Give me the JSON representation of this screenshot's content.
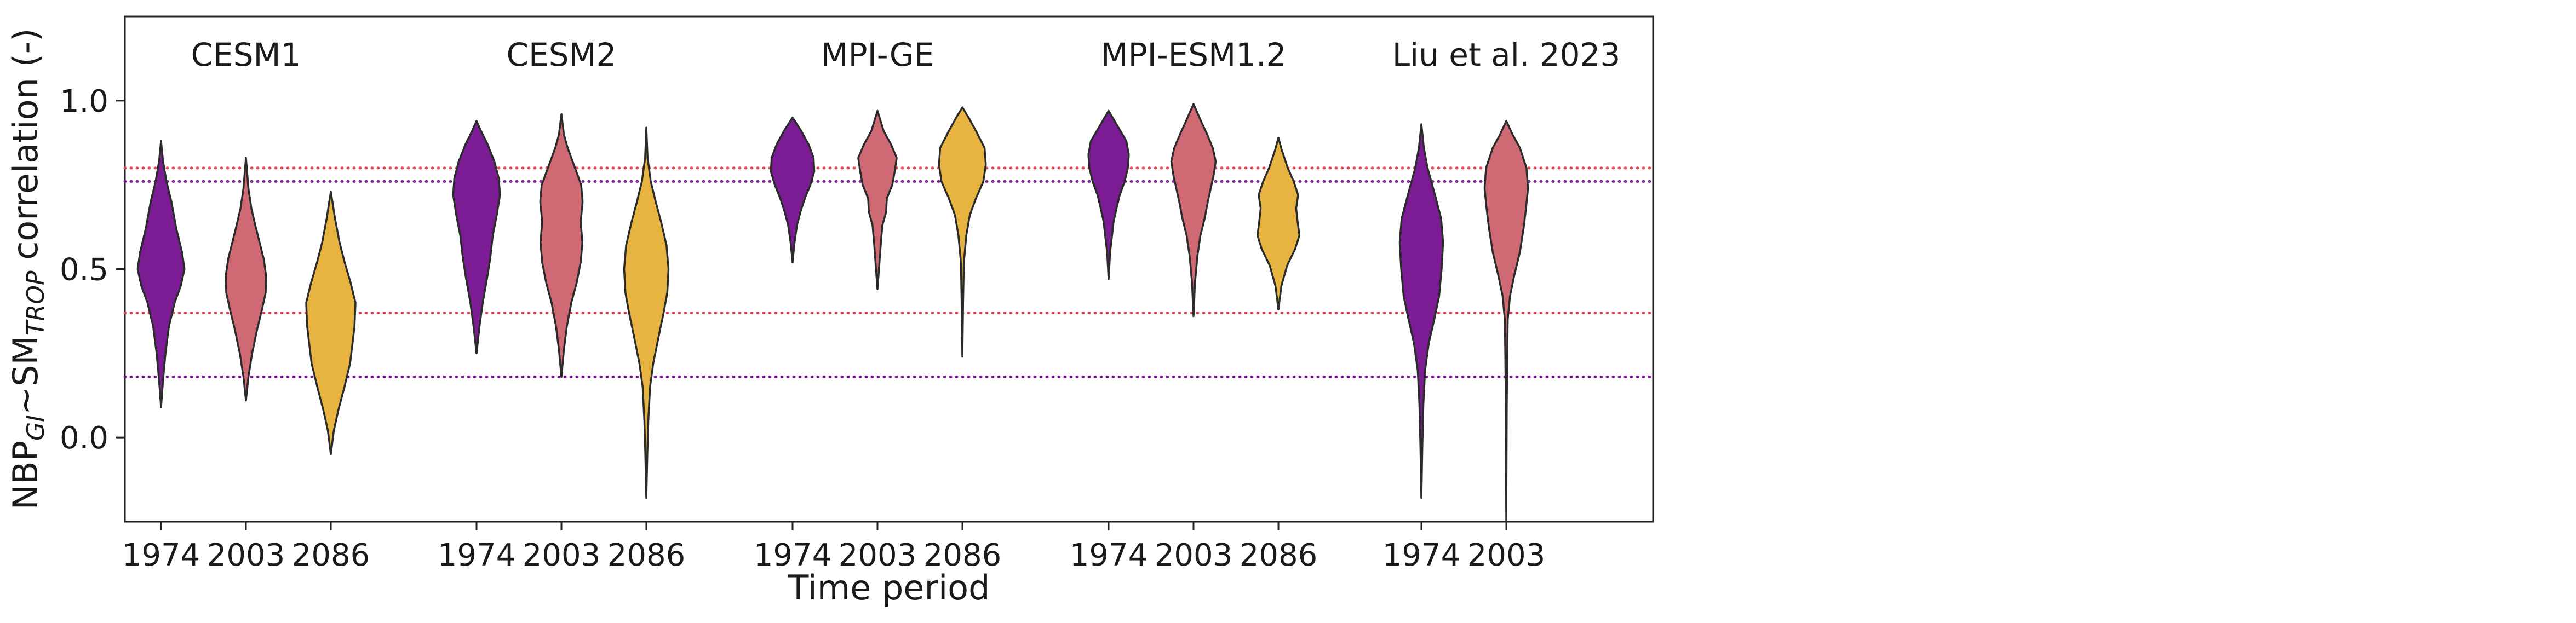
{
  "chart_data": {
    "type": "violin",
    "ylabel": {
      "base": "NBP",
      "sub1": "GI",
      "mid": "~SM",
      "sub2": "TROP",
      "rest": " correlation (-)"
    },
    "xlabel": "Time period",
    "ylim": [
      -0.25,
      1.25
    ],
    "yticks": [
      0.0,
      0.5,
      1.0
    ],
    "ytick_labels": [
      "0.0",
      "0.5",
      "1.0"
    ],
    "grid": false,
    "colors": {
      "1974": "#7b1c95",
      "2003": "#cf6a74",
      "2086": "#e7b441"
    },
    "reference_lines": [
      {
        "y": 0.8,
        "color": "#e04a5a",
        "style": "dotted"
      },
      {
        "y": 0.76,
        "color": "#7b1c95",
        "style": "dotted"
      },
      {
        "y": 0.37,
        "color": "#e04a5a",
        "style": "dotted"
      },
      {
        "y": 0.18,
        "color": "#7b1c95",
        "style": "dotted"
      }
    ],
    "groups": [
      {
        "name": "CESM1",
        "violins": [
          {
            "period": "1974",
            "min": 0.09,
            "max": 0.88,
            "profile": [
              [
                0.09,
                0.0
              ],
              [
                0.17,
                0.08
              ],
              [
                0.25,
                0.18
              ],
              [
                0.33,
                0.32
              ],
              [
                0.4,
                0.55
              ],
              [
                0.45,
                0.8
              ],
              [
                0.5,
                0.95
              ],
              [
                0.55,
                0.85
              ],
              [
                0.62,
                0.62
              ],
              [
                0.7,
                0.42
              ],
              [
                0.76,
                0.22
              ],
              [
                0.82,
                0.08
              ],
              [
                0.88,
                0.0
              ]
            ]
          },
          {
            "period": "2003",
            "min": 0.11,
            "max": 0.83,
            "profile": [
              [
                0.11,
                0.0
              ],
              [
                0.18,
                0.1
              ],
              [
                0.25,
                0.25
              ],
              [
                0.32,
                0.45
              ],
              [
                0.38,
                0.65
              ],
              [
                0.43,
                0.8
              ],
              [
                0.48,
                0.82
              ],
              [
                0.53,
                0.72
              ],
              [
                0.58,
                0.55
              ],
              [
                0.63,
                0.38
              ],
              [
                0.68,
                0.22
              ],
              [
                0.74,
                0.1
              ],
              [
                0.83,
                0.0
              ]
            ]
          },
          {
            "period": "2086",
            "min": -0.05,
            "max": 0.73,
            "profile": [
              [
                -0.05,
                0.0
              ],
              [
                0.02,
                0.12
              ],
              [
                0.08,
                0.3
              ],
              [
                0.15,
                0.55
              ],
              [
                0.22,
                0.78
              ],
              [
                0.28,
                0.88
              ],
              [
                0.33,
                0.96
              ],
              [
                0.4,
                1.0
              ],
              [
                0.46,
                0.8
              ],
              [
                0.52,
                0.56
              ],
              [
                0.58,
                0.35
              ],
              [
                0.65,
                0.17
              ],
              [
                0.73,
                0.0
              ]
            ]
          }
        ]
      },
      {
        "name": "CESM2",
        "violins": [
          {
            "period": "1974",
            "min": 0.25,
            "max": 0.94,
            "profile": [
              [
                0.25,
                0.0
              ],
              [
                0.33,
                0.12
              ],
              [
                0.4,
                0.25
              ],
              [
                0.47,
                0.42
              ],
              [
                0.53,
                0.55
              ],
              [
                0.6,
                0.66
              ],
              [
                0.66,
                0.82
              ],
              [
                0.72,
                0.95
              ],
              [
                0.77,
                0.9
              ],
              [
                0.82,
                0.72
              ],
              [
                0.87,
                0.45
              ],
              [
                0.91,
                0.18
              ],
              [
                0.94,
                0.0
              ]
            ]
          },
          {
            "period": "2003",
            "min": 0.18,
            "max": 0.96,
            "profile": [
              [
                0.18,
                0.0
              ],
              [
                0.26,
                0.1
              ],
              [
                0.33,
                0.22
              ],
              [
                0.4,
                0.4
              ],
              [
                0.46,
                0.62
              ],
              [
                0.52,
                0.78
              ],
              [
                0.58,
                0.85
              ],
              [
                0.64,
                0.78
              ],
              [
                0.7,
                0.86
              ],
              [
                0.75,
                0.8
              ],
              [
                0.8,
                0.55
              ],
              [
                0.86,
                0.25
              ],
              [
                0.9,
                0.1
              ],
              [
                0.96,
                0.0
              ]
            ]
          },
          {
            "period": "2086",
            "min": -0.18,
            "max": 0.92,
            "profile": [
              [
                -0.18,
                0.0
              ],
              [
                -0.05,
                0.04
              ],
              [
                0.05,
                0.08
              ],
              [
                0.15,
                0.15
              ],
              [
                0.22,
                0.28
              ],
              [
                0.3,
                0.5
              ],
              [
                0.37,
                0.7
              ],
              [
                0.43,
                0.85
              ],
              [
                0.5,
                0.9
              ],
              [
                0.57,
                0.82
              ],
              [
                0.64,
                0.6
              ],
              [
                0.7,
                0.38
              ],
              [
                0.76,
                0.18
              ],
              [
                0.83,
                0.05
              ],
              [
                0.92,
                0.0
              ]
            ]
          }
        ]
      },
      {
        "name": "MPI-GE",
        "violins": [
          {
            "period": "1974",
            "min": 0.52,
            "max": 0.95,
            "profile": [
              [
                0.52,
                0.0
              ],
              [
                0.58,
                0.08
              ],
              [
                0.63,
                0.18
              ],
              [
                0.67,
                0.32
              ],
              [
                0.71,
                0.5
              ],
              [
                0.75,
                0.72
              ],
              [
                0.79,
                0.88
              ],
              [
                0.83,
                0.85
              ],
              [
                0.87,
                0.65
              ],
              [
                0.91,
                0.35
              ],
              [
                0.95,
                0.0
              ]
            ]
          },
          {
            "period": "2003",
            "min": 0.44,
            "max": 0.97,
            "profile": [
              [
                0.44,
                0.0
              ],
              [
                0.52,
                0.08
              ],
              [
                0.58,
                0.14
              ],
              [
                0.63,
                0.2
              ],
              [
                0.67,
                0.35
              ],
              [
                0.71,
                0.38
              ],
              [
                0.75,
                0.6
              ],
              [
                0.79,
                0.7
              ],
              [
                0.83,
                0.78
              ],
              [
                0.87,
                0.55
              ],
              [
                0.91,
                0.25
              ],
              [
                0.97,
                0.0
              ]
            ]
          },
          {
            "period": "2086",
            "min": 0.24,
            "max": 0.98,
            "profile": [
              [
                0.24,
                0.0
              ],
              [
                0.4,
                0.03
              ],
              [
                0.52,
                0.06
              ],
              [
                0.6,
                0.16
              ],
              [
                0.66,
                0.3
              ],
              [
                0.71,
                0.55
              ],
              [
                0.76,
                0.85
              ],
              [
                0.81,
                0.95
              ],
              [
                0.86,
                0.9
              ],
              [
                0.91,
                0.55
              ],
              [
                0.95,
                0.25
              ],
              [
                0.98,
                0.0
              ]
            ]
          }
        ]
      },
      {
        "name": "MPI-ESM1.2",
        "violins": [
          {
            "period": "1974",
            "min": 0.47,
            "max": 0.97,
            "profile": [
              [
                0.47,
                0.0
              ],
              [
                0.55,
                0.06
              ],
              [
                0.6,
                0.14
              ],
              [
                0.64,
                0.2
              ],
              [
                0.68,
                0.32
              ],
              [
                0.72,
                0.45
              ],
              [
                0.76,
                0.65
              ],
              [
                0.8,
                0.78
              ],
              [
                0.84,
                0.82
              ],
              [
                0.88,
                0.72
              ],
              [
                0.92,
                0.4
              ],
              [
                0.97,
                0.0
              ]
            ]
          },
          {
            "period": "2003",
            "min": 0.36,
            "max": 0.99,
            "profile": [
              [
                0.36,
                0.0
              ],
              [
                0.46,
                0.06
              ],
              [
                0.54,
                0.16
              ],
              [
                0.6,
                0.28
              ],
              [
                0.65,
                0.45
              ],
              [
                0.7,
                0.58
              ],
              [
                0.74,
                0.7
              ],
              [
                0.78,
                0.82
              ],
              [
                0.82,
                0.9
              ],
              [
                0.86,
                0.78
              ],
              [
                0.9,
                0.55
              ],
              [
                0.94,
                0.3
              ],
              [
                0.99,
                0.0
              ]
            ]
          },
          {
            "period": "2086",
            "min": 0.38,
            "max": 0.89,
            "profile": [
              [
                0.38,
                0.0
              ],
              [
                0.45,
                0.12
              ],
              [
                0.51,
                0.35
              ],
              [
                0.56,
                0.68
              ],
              [
                0.6,
                0.85
              ],
              [
                0.64,
                0.78
              ],
              [
                0.68,
                0.72
              ],
              [
                0.72,
                0.8
              ],
              [
                0.76,
                0.62
              ],
              [
                0.8,
                0.38
              ],
              [
                0.85,
                0.15
              ],
              [
                0.89,
                0.0
              ]
            ]
          }
        ]
      },
      {
        "name": "Liu et al. 2023",
        "violins": [
          {
            "period": "1974",
            "min": -0.18,
            "max": 0.93,
            "profile": [
              [
                -0.18,
                0.0
              ],
              [
                -0.02,
                0.04
              ],
              [
                0.1,
                0.08
              ],
              [
                0.2,
                0.15
              ],
              [
                0.28,
                0.3
              ],
              [
                0.35,
                0.52
              ],
              [
                0.42,
                0.72
              ],
              [
                0.5,
                0.82
              ],
              [
                0.58,
                0.88
              ],
              [
                0.65,
                0.8
              ],
              [
                0.72,
                0.55
              ],
              [
                0.8,
                0.25
              ],
              [
                0.86,
                0.1
              ],
              [
                0.93,
                0.0
              ]
            ]
          },
          {
            "period": "2003",
            "min": -0.25,
            "max": 0.94,
            "profile": [
              [
                -0.25,
                0.0
              ],
              [
                0.1,
                0.02
              ],
              [
                0.25,
                0.04
              ],
              [
                0.35,
                0.06
              ],
              [
                0.42,
                0.15
              ],
              [
                0.48,
                0.32
              ],
              [
                0.55,
                0.55
              ],
              [
                0.62,
                0.7
              ],
              [
                0.68,
                0.8
              ],
              [
                0.74,
                0.88
              ],
              [
                0.8,
                0.82
              ],
              [
                0.86,
                0.55
              ],
              [
                0.9,
                0.25
              ],
              [
                0.94,
                0.0
              ]
            ]
          }
        ]
      }
    ]
  }
}
